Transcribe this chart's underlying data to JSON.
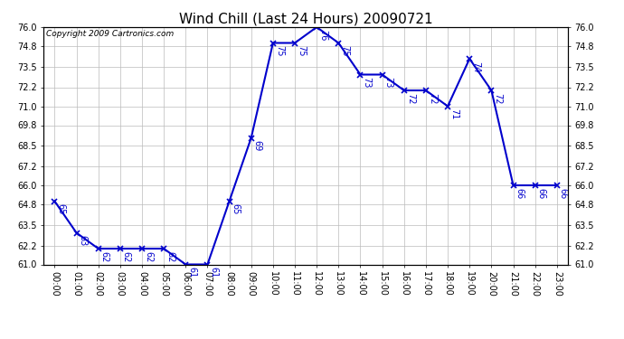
{
  "title": "Wind Chill (Last 24 Hours) 20090721",
  "copyright": "Copyright 2009 Cartronics.com",
  "hours": [
    "00:00",
    "01:00",
    "02:00",
    "03:00",
    "04:00",
    "05:00",
    "06:00",
    "07:00",
    "08:00",
    "09:00",
    "10:00",
    "11:00",
    "12:00",
    "13:00",
    "14:00",
    "15:00",
    "16:00",
    "17:00",
    "18:00",
    "19:00",
    "20:00",
    "21:00",
    "22:00",
    "23:00"
  ],
  "values": [
    65,
    63,
    62,
    62,
    62,
    62,
    61,
    61,
    65,
    69,
    75,
    75,
    76,
    75,
    73,
    73,
    72,
    72,
    71,
    74,
    72,
    66,
    66,
    66
  ],
  "ylim_min": 61.0,
  "ylim_max": 76.0,
  "yticks": [
    61.0,
    62.2,
    63.5,
    64.8,
    66.0,
    67.2,
    68.5,
    69.8,
    71.0,
    72.2,
    73.5,
    74.8,
    76.0
  ],
  "line_color": "#0000cc",
  "marker_color": "#0000cc",
  "bg_color": "#ffffff",
  "grid_color": "#bbbbbb",
  "title_fontsize": 11,
  "tick_fontsize": 7,
  "label_fontsize": 7,
  "copyright_fontsize": 6.5
}
